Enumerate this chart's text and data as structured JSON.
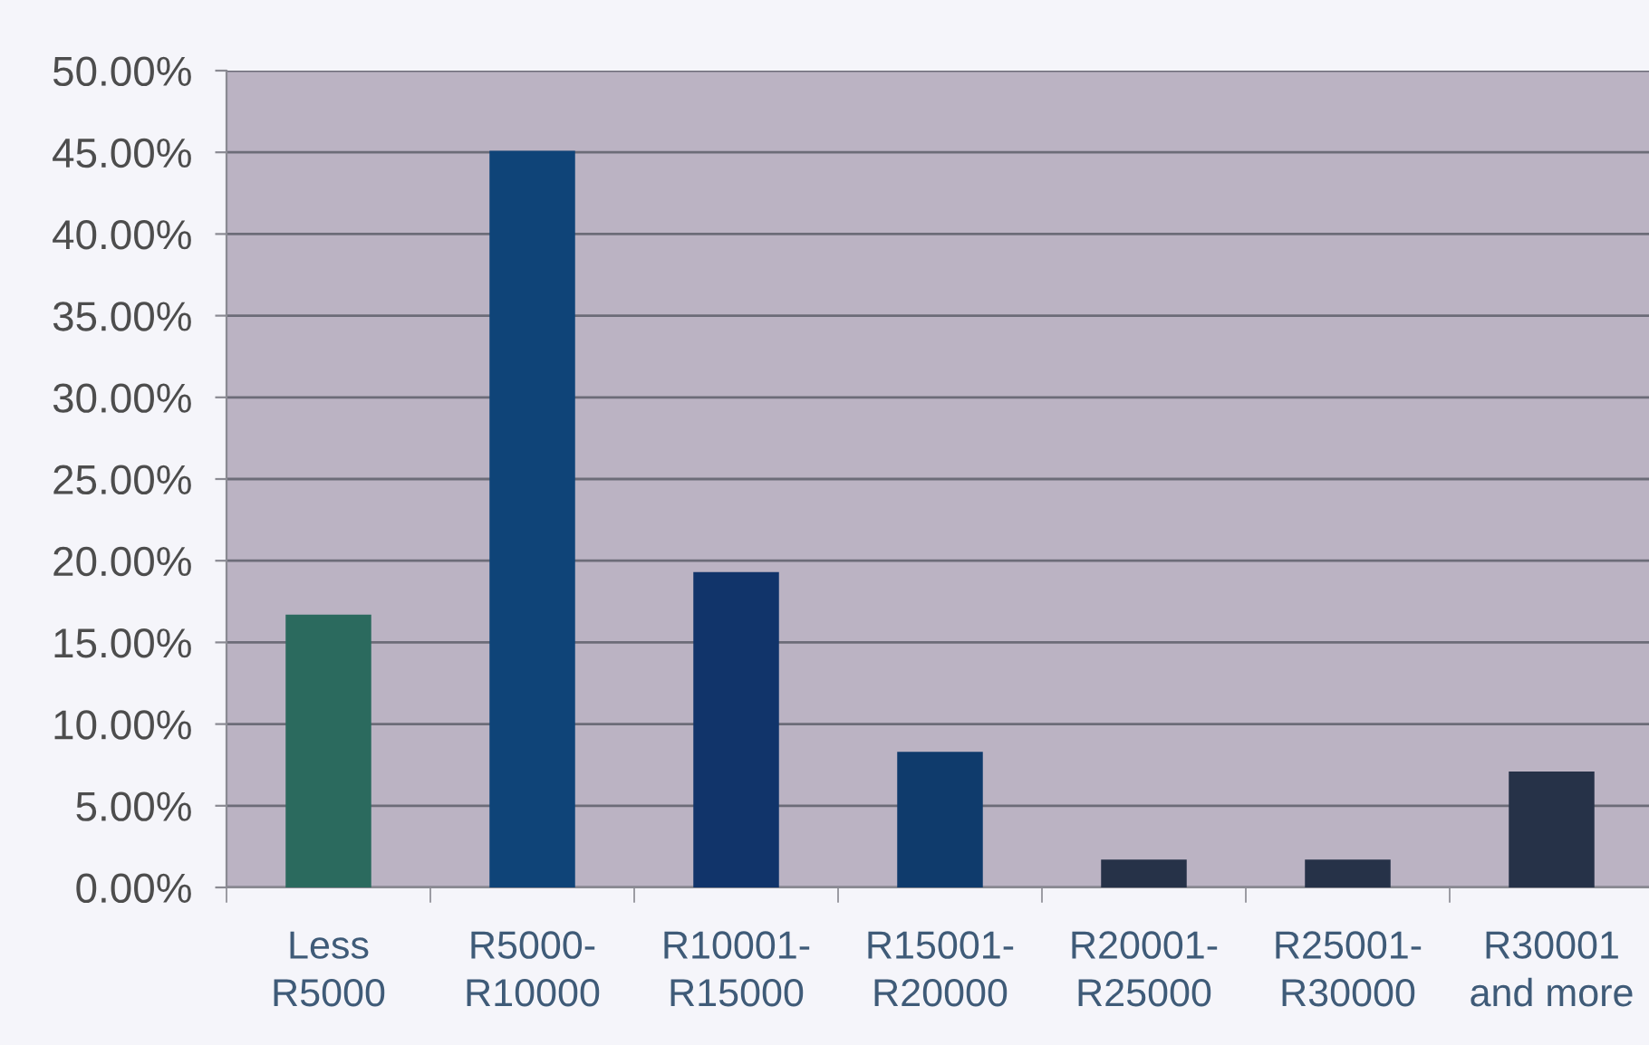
{
  "chart_data": {
    "type": "bar",
    "categories": [
      "Less\nR5000",
      "R5000-\nR10000",
      "R10001-\nR15000",
      "R15001-\nR20000",
      "R20001-\nR25000",
      "R25001-\nR30000",
      "R30001\nand more"
    ],
    "values": [
      16.7,
      45.1,
      19.3,
      8.3,
      1.7,
      1.7,
      7.1
    ],
    "colors": [
      "#2b6a5e",
      "#0f4478",
      "#11346a",
      "#0f3b6c",
      "#263248",
      "#263248",
      "#263248"
    ],
    "ylim": [
      0,
      50
    ],
    "yticks": [
      {
        "value": 0,
        "label": "0.00%"
      },
      {
        "value": 5,
        "label": "5.00%"
      },
      {
        "value": 10,
        "label": "10.00%"
      },
      {
        "value": 15,
        "label": "15.00%"
      },
      {
        "value": 20,
        "label": "20.00%"
      },
      {
        "value": 25,
        "label": "25.00%"
      },
      {
        "value": 30,
        "label": "30.00%"
      },
      {
        "value": 35,
        "label": "35.00%"
      },
      {
        "value": 40,
        "label": "40.00%"
      },
      {
        "value": 45,
        "label": "45.00%"
      },
      {
        "value": 50,
        "label": "50.00%"
      }
    ],
    "grid": "y",
    "legend": false
  }
}
